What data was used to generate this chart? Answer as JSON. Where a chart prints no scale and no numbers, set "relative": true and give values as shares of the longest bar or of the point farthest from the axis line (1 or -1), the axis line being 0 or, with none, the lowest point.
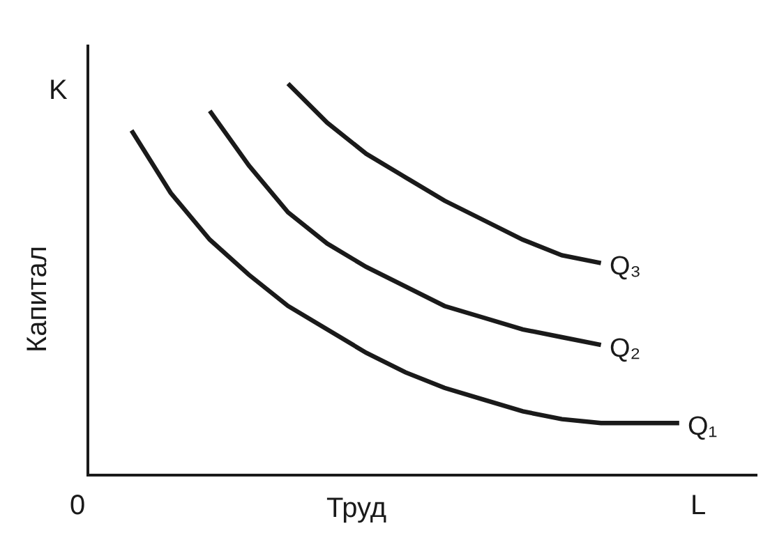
{
  "chart_data": {
    "type": "line",
    "relative": true,
    "xlabel": "Труд",
    "ylabel": "Капитал",
    "annotations": [
      "K",
      "L",
      "0"
    ],
    "categories": [
      null,
      null,
      null,
      null,
      null,
      null,
      null,
      null,
      null,
      null,
      null,
      null,
      null,
      null,
      null
    ],
    "series": [
      {
        "name": "Q₁",
        "color": "#1a1a1a",
        "values": [
          0.88,
          0.72,
          0.6,
          0.51,
          0.43,
          0.37,
          0.31,
          0.26,
          0.22,
          0.19,
          0.16,
          0.14,
          0.13,
          0.13,
          0.13
        ]
      },
      {
        "name": "Q₂",
        "color": "#1a1a1a",
        "values": [
          null,
          null,
          0.93,
          0.79,
          0.67,
          0.59,
          0.53,
          0.48,
          0.43,
          0.4,
          0.37,
          0.35,
          0.33,
          null,
          null
        ]
      },
      {
        "name": "Q₃",
        "color": "#1a1a1a",
        "values": [
          null,
          null,
          null,
          null,
          1,
          0.9,
          0.82,
          0.76,
          0.7,
          0.65,
          0.6,
          0.56,
          0.54,
          null,
          null
        ]
      }
    ],
    "legend": false,
    "marker": "none",
    "line_style": "solid"
  }
}
